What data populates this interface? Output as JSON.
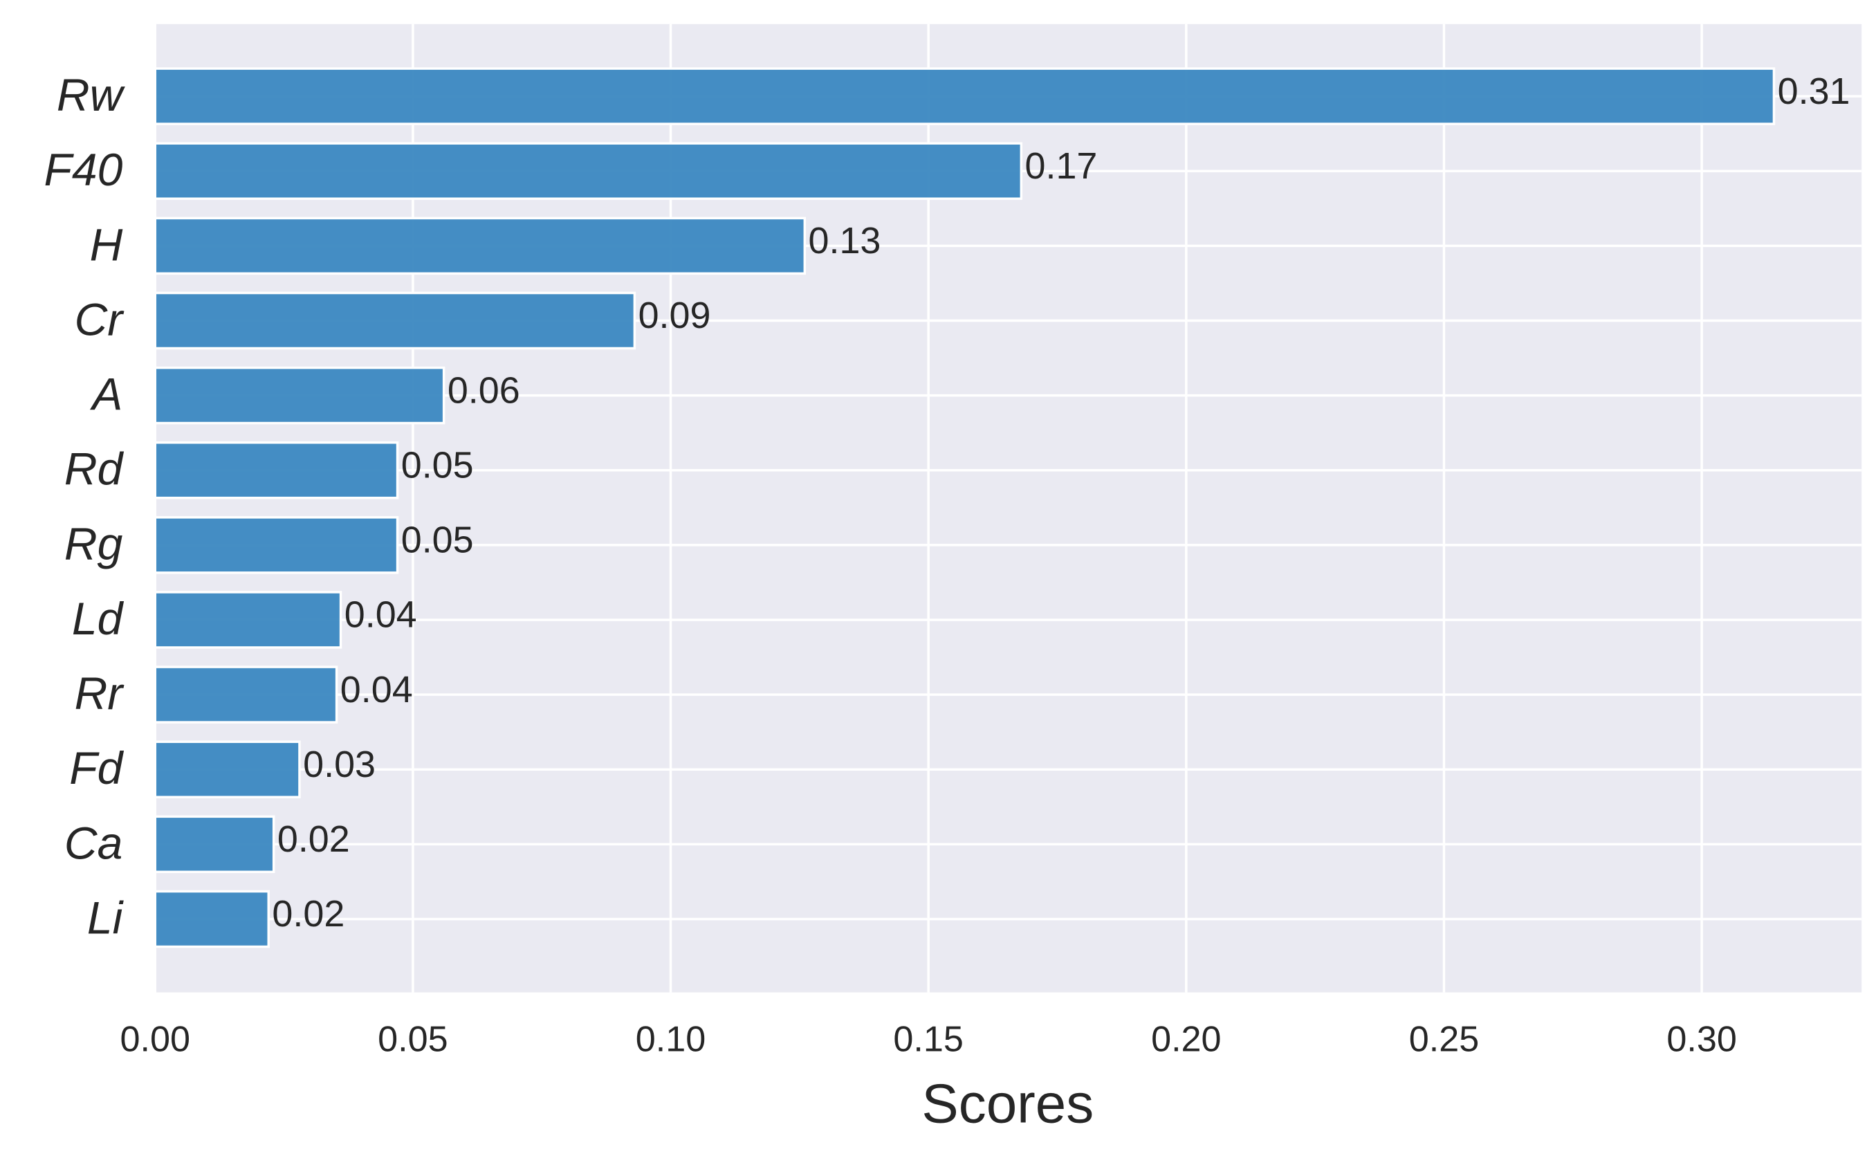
{
  "chart_data": {
    "type": "barh",
    "xlabel": "Scores",
    "categories": [
      "Rw",
      "F40",
      "H",
      "Cr",
      "A",
      "Rd",
      "Rg",
      "Ld",
      "Rr",
      "Fd",
      "Ca",
      "Li"
    ],
    "values": [
      0.314,
      0.168,
      0.126,
      0.093,
      0.056,
      0.047,
      0.047,
      0.036,
      0.0352,
      0.028,
      0.023,
      0.022
    ],
    "value_labels": [
      "0.31",
      "0.17",
      "0.13",
      "0.09",
      "0.06",
      "0.05",
      "0.05",
      "0.04",
      "0.04",
      "0.03",
      "0.02",
      "0.02"
    ],
    "color": "#3b88c1",
    "xlim": [
      0,
      0.331
    ],
    "xticks": [
      {
        "value": 0,
        "label": "0.00"
      },
      {
        "value": 0.05,
        "label": "0.05"
      },
      {
        "value": 0.1,
        "label": "0.10"
      },
      {
        "value": 0.15,
        "label": "0.15"
      },
      {
        "value": 0.2,
        "label": "0.20"
      },
      {
        "value": 0.25,
        "label": "0.25"
      },
      {
        "value": 0.3,
        "label": "0.30"
      }
    ],
    "grid": true
  }
}
